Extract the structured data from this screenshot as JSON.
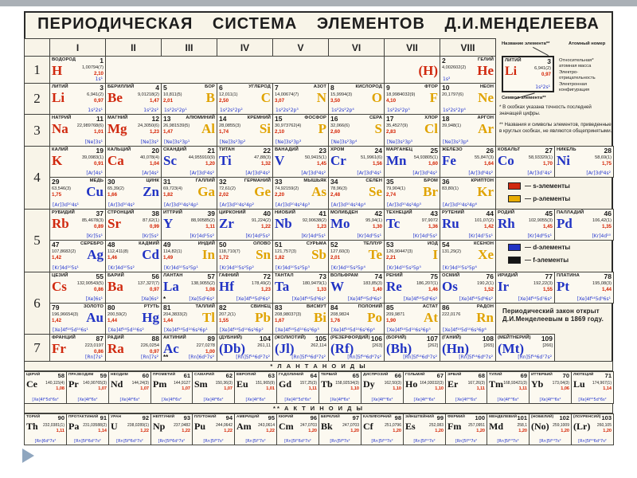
{
  "slide": {
    "title": "ПЕРИОДИЧЕСКАЯ СИСТЕМА ЭЛЕМЕНТОВ Д.И.МЕНДЕЛЕЕВА",
    "footnote_star": "* В скобках указана точность последней значащей цифры.",
    "footnote_dblstar": "** Названия и символы элементов, приведенные в круглых скобках, не являются общепринятыми.",
    "law_note": "Периодический закон открыт\nД.И.Менделеевым в 1869 году."
  },
  "groups": [
    "I",
    "II",
    "III",
    "IV",
    "V",
    "VI",
    "VII",
    "VIII"
  ],
  "periods": [
    "1",
    "2",
    "3",
    "4",
    "5",
    "6",
    "7"
  ],
  "series_headers": {
    "lanthanides": "* Л А Н Т А Н О И Д Ы",
    "actinides": "** А К Т И Н О И Д Ы"
  },
  "legend": {
    "name_label": "Название элемента**",
    "number_label": "Атомный номер",
    "mass_label": "Относительная*\nатомная масса",
    "en_label": "Электро-\nотрицательность",
    "cfg_label": "Электронная\nконфигурация",
    "symbol_label": "Символ элемента**"
  },
  "sample_card": {
    "num": "3",
    "name": "ЛИТИЙ",
    "sym": "Li",
    "mass": "6,941(2)",
    "en": "0,97",
    "cfg": "1s²2s¹"
  },
  "block_legend": [
    {
      "color": "#d0290f",
      "label": "— s-элементы"
    },
    {
      "color": "#e8ac00",
      "label": "— p-элементы"
    },
    {
      "color": "#2133c4",
      "label": "— d-элементы"
    },
    {
      "color": "#141414",
      "label": "— f-элементы"
    }
  ],
  "element_fields": [
    "row",
    "col",
    "side",
    "block",
    "number",
    "name",
    "symbol",
    "atomic_mass",
    "electronegativity",
    "electron_configuration",
    "marker"
  ],
  "elements": [
    [
      "p1",
      1,
      "L",
      "s",
      "1",
      "ВОДОРОД",
      "H",
      "1,00794(7)",
      "2,10",
      "1s¹",
      ""
    ],
    [
      "p1",
      7,
      "R",
      "s",
      "",
      "",
      "(H)",
      "",
      "",
      "",
      ""
    ],
    [
      "p1",
      8,
      "R",
      "s",
      "2",
      "ГЕЛИЙ",
      "He",
      "4,002602(2)",
      "",
      "1s²",
      ""
    ],
    [
      "p2",
      1,
      "L",
      "s",
      "3",
      "ЛИТИЙ",
      "Li",
      "6,941(2)",
      "0,97",
      "1s²2s¹",
      ""
    ],
    [
      "p2",
      2,
      "L",
      "s",
      "4",
      "БЕРИЛЛИЙ",
      "Be",
      "9,01218(2)",
      "1,47",
      "1s²2s²",
      ""
    ],
    [
      "p2",
      3,
      "R",
      "p",
      "5",
      "БОР",
      "B",
      "10,811(5)",
      "2,01",
      "1s²2s²2p¹",
      ""
    ],
    [
      "p2",
      4,
      "R",
      "p",
      "6",
      "УГЛЕРОД",
      "C",
      "12,011(1)",
      "2,50",
      "1s²2s²2p²",
      ""
    ],
    [
      "p2",
      5,
      "R",
      "p",
      "7",
      "АЗОТ",
      "N",
      "14,00674(7)",
      "3,07",
      "1s²2s²2p³",
      ""
    ],
    [
      "p2",
      6,
      "R",
      "p",
      "8",
      "КИСЛОРОД",
      "O",
      "15,9994(3)",
      "3,50",
      "1s²2s²2p⁴",
      ""
    ],
    [
      "p2",
      7,
      "R",
      "p",
      "9",
      "ФТОР",
      "F",
      "18,9984032(9)",
      "4,10",
      "1s²2s²2p⁵",
      ""
    ],
    [
      "p2",
      8,
      "R",
      "p",
      "10",
      "НЕОН",
      "Ne",
      "20,1797(6)",
      "",
      "1s²2s²2p⁶",
      ""
    ],
    [
      "p3",
      1,
      "L",
      "s",
      "11",
      "НАТРИЙ",
      "Na",
      "22,989768(6)",
      "1,01",
      "[Ne]3s¹",
      ""
    ],
    [
      "p3",
      2,
      "L",
      "s",
      "12",
      "МАГНИЙ",
      "Mg",
      "24,3050(6)",
      "1,23",
      "[Ne]3s²",
      ""
    ],
    [
      "p3",
      3,
      "R",
      "p",
      "13",
      "АЛЮМИНИЙ",
      "Al",
      "26,981539(5)",
      "1,47",
      "[Ne]3s²3p¹",
      ""
    ],
    [
      "p3",
      4,
      "R",
      "p",
      "14",
      "КРЕМНИЙ",
      "Si",
      "28,0855(3)",
      "1,74",
      "[Ne]3s²3p²",
      ""
    ],
    [
      "p3",
      5,
      "R",
      "p",
      "15",
      "ФОСФОР",
      "P",
      "30,973762(4)",
      "2,10",
      "[Ne]3s²3p³",
      ""
    ],
    [
      "p3",
      6,
      "R",
      "p",
      "16",
      "СЕРА",
      "S",
      "32,066(6)",
      "2,60",
      "[Ne]3s²3p⁴",
      ""
    ],
    [
      "p3",
      7,
      "R",
      "p",
      "17",
      "ХЛОР",
      "Cl",
      "35,4527(9)",
      "2,83",
      "[Ne]3s²3p⁵",
      ""
    ],
    [
      "p3",
      8,
      "R",
      "p",
      "18",
      "АРГОН",
      "Ar",
      "39,948(1)",
      "",
      "[Ne]3s²3p⁶",
      ""
    ],
    [
      "p4a",
      1,
      "L",
      "s",
      "19",
      "КАЛИЙ",
      "K",
      "39,0983(1)",
      "0,91",
      "[Ar]4s¹",
      ""
    ],
    [
      "p4a",
      2,
      "L",
      "s",
      "20",
      "КАЛЬЦИЙ",
      "Ca",
      "40,078(4)",
      "1,04",
      "[Ar]4s²",
      ""
    ],
    [
      "p4a",
      3,
      "L",
      "d",
      "21",
      "СКАНДИЙ",
      "Sc",
      "44,955910(9)",
      "1,20",
      "[Ar]3d¹4s²",
      ""
    ],
    [
      "p4a",
      4,
      "L",
      "d",
      "22",
      "ТИТАН",
      "Ti",
      "47,88(3)",
      "1,32",
      "[Ar]3d²4s²",
      ""
    ],
    [
      "p4a",
      5,
      "L",
      "d",
      "23",
      "ВАНАДИЙ",
      "V",
      "50,9415(1)",
      "1,45",
      "[Ar]3d³4s²",
      ""
    ],
    [
      "p4a",
      6,
      "L",
      "d",
      "24",
      "ХРОМ",
      "Cr",
      "51,9961(6)",
      "1,56",
      "[Ar]3d⁵4s¹",
      ""
    ],
    [
      "p4a",
      7,
      "L",
      "d",
      "25",
      "МАРГАНЕЦ",
      "Mn",
      "54,93805(1)",
      "1,60",
      "[Ar]3d⁵4s²",
      ""
    ],
    [
      "p4a",
      8,
      "L",
      "d",
      "26",
      "ЖЕЛЕЗО",
      "Fe",
      "55,847(3)",
      "1,64",
      "[Ar]3d⁶4s²",
      ""
    ],
    [
      "p4a",
      9,
      "L",
      "d",
      "27",
      "КОБАЛЬТ",
      "Co",
      "58,93320(1)",
      "1,70",
      "[Ar]3d⁷4s²",
      ""
    ],
    [
      "p4a",
      10,
      "L",
      "d",
      "28",
      "НИКЕЛЬ",
      "Ni",
      "58,69(1)",
      "1,75",
      "[Ar]3d⁸4s²",
      ""
    ],
    [
      "p4b",
      1,
      "R",
      "d",
      "29",
      "МЕДЬ",
      "Cu",
      "63,546(3)",
      "1,75",
      "[Ar]3d¹⁰4s¹",
      ""
    ],
    [
      "p4b",
      2,
      "R",
      "d",
      "30",
      "ЦИНК",
      "Zn",
      "65,39(2)",
      "1,66",
      "[Ar]3d¹⁰4s²",
      ""
    ],
    [
      "p4b",
      3,
      "R",
      "p",
      "31",
      "ГАЛЛИЙ",
      "Ga",
      "69,723(4)",
      "1,82",
      "[Ar]3d¹⁰4s²4p¹",
      ""
    ],
    [
      "p4b",
      4,
      "R",
      "p",
      "32",
      "ГЕРМАНИЙ",
      "Ge",
      "72,61(2)",
      "2,02",
      "[Ar]3d¹⁰4s²4p²",
      ""
    ],
    [
      "p4b",
      5,
      "R",
      "p",
      "33",
      "МЫШЬЯК",
      "As",
      "74,92159(2)",
      "2,20",
      "[Ar]3d¹⁰4s²4p³",
      ""
    ],
    [
      "p4b",
      6,
      "R",
      "p",
      "34",
      "СЕЛЕН",
      "Se",
      "78,96(3)",
      "2,48",
      "[Ar]3d¹⁰4s²4p⁴",
      ""
    ],
    [
      "p4b",
      7,
      "R",
      "p",
      "35",
      "БРОМ",
      "Br",
      "79,904(1)",
      "2,74",
      "[Ar]3d¹⁰4s²4p⁵",
      ""
    ],
    [
      "p4b",
      8,
      "R",
      "p",
      "36",
      "КРИПТОН",
      "Kr",
      "83,80(1)",
      "",
      "[Ar]3d¹⁰4s²4p⁶",
      ""
    ],
    [
      "p5a",
      1,
      "L",
      "s",
      "37",
      "РУБИДИЙ",
      "Rb",
      "85,4678(3)",
      "0,89",
      "[Kr]5s¹",
      ""
    ],
    [
      "p5a",
      2,
      "L",
      "s",
      "38",
      "СТРОНЦИЙ",
      "Sr",
      "87,62(1)",
      "0,99",
      "[Kr]5s²",
      ""
    ],
    [
      "p5a",
      3,
      "L",
      "d",
      "39",
      "ИТТРИЙ",
      "Y",
      "88,90585(2)",
      "1,11",
      "[Kr]4d¹5s²",
      ""
    ],
    [
      "p5a",
      4,
      "L",
      "d",
      "40",
      "ЦИРКОНИЙ",
      "Zr",
      "91,224(2)",
      "1,22",
      "[Kr]4d²5s²",
      ""
    ],
    [
      "p5a",
      5,
      "L",
      "d",
      "41",
      "НИОБИЙ",
      "Nb",
      "92,90638(2)",
      "1,23",
      "[Kr]4d⁴5s¹",
      ""
    ],
    [
      "p5a",
      6,
      "L",
      "d",
      "42",
      "МОЛИБДЕН",
      "Mo",
      "95,94(1)",
      "1,30",
      "[Kr]4d⁵5s¹",
      ""
    ],
    [
      "p5a",
      7,
      "L",
      "d",
      "43",
      "ТЕХНЕЦИЙ",
      "Tc",
      "97,9072",
      "1,36",
      "[Kr]4d⁵5s²",
      ""
    ],
    [
      "p5a",
      8,
      "L",
      "d",
      "44",
      "РУТЕНИЙ",
      "Ru",
      "101,07(2)",
      "1,42",
      "[Kr]4d⁷5s¹",
      ""
    ],
    [
      "p5a",
      9,
      "L",
      "d",
      "45",
      "РОДИЙ",
      "Rh",
      "102,9055(3)",
      "1,45",
      "[Kr]4d⁸5s¹",
      ""
    ],
    [
      "p5a",
      10,
      "L",
      "d",
      "46",
      "ПАЛЛАДИЙ",
      "Pd",
      "106,42(1)",
      "1,35",
      "[Kr]4d¹⁰",
      ""
    ],
    [
      "p5b",
      1,
      "R",
      "d",
      "47",
      "СЕРЕБРО",
      "Ag",
      "107,8682(2)",
      "1,42",
      "[Kr]4d¹⁰5s¹",
      ""
    ],
    [
      "p5b",
      2,
      "R",
      "d",
      "48",
      "КАДМИЙ",
      "Cd",
      "112,411(8)",
      "1,46",
      "[Kr]4d¹⁰5s²",
      ""
    ],
    [
      "p5b",
      3,
      "R",
      "p",
      "49",
      "ИНДИЙ",
      "In",
      "114,82(1)",
      "1,49",
      "[Kr]4d¹⁰5s²5p¹",
      ""
    ],
    [
      "p5b",
      4,
      "R",
      "p",
      "50",
      "ОЛОВО",
      "Sn",
      "118,710(7)",
      "1,72",
      "[Kr]4d¹⁰5s²5p²",
      ""
    ],
    [
      "p5b",
      5,
      "R",
      "p",
      "51",
      "СУРЬМА",
      "Sb",
      "121,757(3)",
      "1,82",
      "[Kr]4d¹⁰5s²5p³",
      ""
    ],
    [
      "p5b",
      6,
      "R",
      "p",
      "52",
      "ТЕЛЛУР",
      "Te",
      "127,60(3)",
      "2,01",
      "[Kr]4d¹⁰5s²5p⁴",
      ""
    ],
    [
      "p5b",
      7,
      "R",
      "p",
      "53",
      "ИОД",
      "I",
      "126,90447(3)",
      "2,21",
      "[Kr]4d¹⁰5s²5p⁵",
      ""
    ],
    [
      "p5b",
      8,
      "R",
      "p",
      "54",
      "КСЕНОН",
      "Xe",
      "131,29(2)",
      "",
      "[Kr]4d¹⁰5s²5p⁶",
      ""
    ],
    [
      "p6a",
      1,
      "L",
      "s",
      "55",
      "ЦЕЗИЙ",
      "Cs",
      "132,90543(5)",
      "0,86",
      "[Xe]6s¹",
      ""
    ],
    [
      "p6a",
      2,
      "L",
      "s",
      "56",
      "БАРИЙ",
      "Ba",
      "137,327(7)",
      "0,97",
      "[Xe]6s²",
      ""
    ],
    [
      "p6a",
      3,
      "L",
      "d",
      "57",
      "ЛАНТАН",
      "La",
      "138,9055(2)",
      "1,08",
      "[Xe]5d¹6s²",
      "*"
    ],
    [
      "p6a",
      4,
      "L",
      "d",
      "72",
      "ГАФНИЙ",
      "Hf",
      "178,49(2)",
      "1,23",
      "[Xe]4f¹⁴5d²6s²",
      ""
    ],
    [
      "p6a",
      5,
      "L",
      "d",
      "73",
      "ТАНТАЛ",
      "Ta",
      "180,9479(1)",
      "1,33",
      "[Xe]4f¹⁴5d³6s²",
      ""
    ],
    [
      "p6a",
      6,
      "L",
      "d",
      "74",
      "ВОЛЬФРАМ",
      "W",
      "183,85(3)",
      "1,40",
      "[Xe]4f¹⁴5d⁴6s²",
      ""
    ],
    [
      "p6a",
      7,
      "L",
      "d",
      "75",
      "РЕНИЙ",
      "Re",
      "186,207(1)",
      "1,46",
      "[Xe]4f¹⁴5d⁵6s²",
      ""
    ],
    [
      "p6a",
      8,
      "L",
      "d",
      "76",
      "ОСМИЙ",
      "Os",
      "190,2(1)",
      "1,52",
      "[Xe]4f¹⁴5d⁶6s²",
      ""
    ],
    [
      "p6a",
      9,
      "L",
      "d",
      "77",
      "ИРИДИЙ",
      "Ir",
      "192,22(3)",
      "1,55",
      "[Xe]4f¹⁴5d⁷6s²",
      ""
    ],
    [
      "p6a",
      10,
      "L",
      "d",
      "78",
      "ПЛАТИНА",
      "Pt",
      "195,08(3)",
      "1,44",
      "[Xe]4f¹⁴5d⁹6s¹",
      ""
    ],
    [
      "p6b",
      1,
      "R",
      "d",
      "79",
      "ЗОЛОТО",
      "Au",
      "196,96654(3)",
      "1,42",
      "[Xe]4f¹⁴5d¹⁰6s¹",
      ""
    ],
    [
      "p6b",
      2,
      "R",
      "d",
      "80",
      "РТУТЬ",
      "Hg",
      "200,59(2)",
      "1,44",
      "[Xe]4f¹⁴5d¹⁰6s²",
      ""
    ],
    [
      "p6b",
      3,
      "R",
      "p",
      "81",
      "ТАЛЛИЙ",
      "Tl",
      "204,3833(2)",
      "1,44",
      "[Xe]4f¹⁴5d¹⁰6s²6p¹",
      ""
    ],
    [
      "p6b",
      4,
      "R",
      "p",
      "82",
      "СВИНЕЦ",
      "Pb",
      "207,2(1)",
      "1,55",
      "[Xe]4f¹⁴5d¹⁰6s²6p²",
      ""
    ],
    [
      "p6b",
      5,
      "R",
      "p",
      "83",
      "ВИСМУТ",
      "Bi",
      "208,98037(3)",
      "1,67",
      "[Xe]4f¹⁴5d¹⁰6s²6p³",
      ""
    ],
    [
      "p6b",
      6,
      "R",
      "p",
      "84",
      "ПОЛОНИЙ",
      "Po",
      "208,9824",
      "1,76",
      "[Xe]4f¹⁴5d¹⁰6s²6p⁴",
      ""
    ],
    [
      "p6b",
      7,
      "R",
      "p",
      "85",
      "АСТАТ",
      "At",
      "209,9871",
      "1,90",
      "[Xe]4f¹⁴5d¹⁰6s²6p⁵",
      ""
    ],
    [
      "p6b",
      8,
      "R",
      "p",
      "86",
      "РАДОН",
      "Rn",
      "222,0176",
      "",
      "[Xe]4f¹⁴5d¹⁰6s²6p⁶",
      ""
    ],
    [
      "p7",
      1,
      "L",
      "s",
      "87",
      "ФРАНЦИЙ",
      "Fr",
      "223,0197",
      "0,86",
      "[Rn]7s¹",
      ""
    ],
    [
      "p7",
      2,
      "L",
      "s",
      "88",
      "РАДИЙ",
      "Ra",
      "226,0254",
      "0,97",
      "[Rn]7s²",
      ""
    ],
    [
      "p7",
      3,
      "L",
      "d",
      "89",
      "АКТИНИЙ",
      "Ac",
      "227,0278",
      "1,00",
      "[Rn]6d¹7s²",
      "**"
    ],
    [
      "p7",
      4,
      "L",
      "d",
      "104",
      "(ДУБНИЙ)",
      "(Db)",
      "261,11",
      "",
      "[Rn]5f¹⁴6d²7s²",
      ""
    ],
    [
      "p7",
      5,
      "L",
      "d",
      "105",
      "(ЖОЛИОТИЙ)",
      "(Jl)",
      "262,114",
      "",
      "[Rn]5f¹⁴6d³7s²",
      ""
    ],
    [
      "p7",
      6,
      "L",
      "d",
      "106",
      "(РЕЗЕРФОРДИЙ)",
      "(Rf)",
      "[263]",
      "",
      "[Rn]5f¹⁴6d⁴7s²",
      ""
    ],
    [
      "p7",
      7,
      "L",
      "d",
      "107",
      "(БОРИЙ)",
      "(Bh)",
      "[262]",
      "",
      "[Rn]5f¹⁴6d⁵7s²",
      ""
    ],
    [
      "p7",
      8,
      "L",
      "d",
      "108",
      "(ГАНИЙ)",
      "(Hn)",
      "[265]",
      "",
      "[Rn]5f¹⁴6d⁶7s²",
      ""
    ],
    [
      "p7",
      9,
      "L",
      "d",
      "109",
      "(МЕЙТНЕРИЙ)",
      "(Mt)",
      "[266]",
      "",
      "[Rn]5f¹⁴6d⁷7s²",
      ""
    ],
    [
      "la",
      1,
      "L",
      "f",
      "58",
      "ЦЕРИЙ",
      "Ce",
      "140,115(4)",
      "1,08",
      "[Xe]4f¹5d¹6s²",
      ""
    ],
    [
      "la",
      2,
      "L",
      "f",
      "59",
      "ПРАЗЕОДИМ",
      "Pr",
      "140,90765(3)",
      "1,07",
      "[Xe]4f³6s²",
      ""
    ],
    [
      "la",
      3,
      "L",
      "f",
      "60",
      "НЕОДИМ",
      "Nd",
      "144,24(3)",
      "1,07",
      "[Xe]4f⁴6s²",
      ""
    ],
    [
      "la",
      4,
      "L",
      "f",
      "61",
      "ПРОМЕТИЙ",
      "Pm",
      "144,9127",
      "1,07",
      "[Xe]4f⁵6s²",
      ""
    ],
    [
      "la",
      5,
      "L",
      "f",
      "62",
      "САМАРИЙ",
      "Sm",
      "150,36(3)",
      "1,07",
      "[Xe]4f⁶6s²",
      ""
    ],
    [
      "la",
      6,
      "L",
      "f",
      "63",
      "ЕВРОПИЙ",
      "Eu",
      "151,965(9)",
      "1,01",
      "[Xe]4f⁷6s²",
      ""
    ],
    [
      "la",
      7,
      "L",
      "f",
      "64",
      "ГАДОЛИНИЙ",
      "Gd",
      "157,25(3)",
      "1,11",
      "[Xe]4f⁷5d¹6s²",
      ""
    ],
    [
      "la",
      8,
      "L",
      "f",
      "65",
      "ТЕРБИЙ",
      "Tb",
      "158,92534(3)",
      "1,10",
      "[Xe]4f⁹6s²",
      ""
    ],
    [
      "la",
      9,
      "L",
      "f",
      "66",
      "ДИСПРОЗИЙ",
      "Dy",
      "162,50(3)",
      "1,10",
      "[Xe]4f¹⁰6s²",
      ""
    ],
    [
      "la",
      10,
      "L",
      "f",
      "67",
      "ГОЛЬМИЙ",
      "Ho",
      "164,93032(3)",
      "1,10",
      "[Xe]4f¹¹6s²",
      ""
    ],
    [
      "la",
      11,
      "L",
      "f",
      "68",
      "ЭРБИЙ",
      "Er",
      "167,26(3)",
      "1,11",
      "[Xe]4f¹²6s²",
      ""
    ],
    [
      "la",
      12,
      "L",
      "f",
      "69",
      "ТУЛИЙ",
      "Tm",
      "168,93421(3)",
      "1,11",
      "[Xe]4f¹³6s²",
      ""
    ],
    [
      "la",
      13,
      "L",
      "f",
      "70",
      "ИТТЕРБИЙ",
      "Yb",
      "173,04(3)",
      "1,06",
      "[Xe]4f¹⁴6s²",
      ""
    ],
    [
      "la",
      14,
      "L",
      "f",
      "71",
      "ЛЮТЕЦИЙ",
      "Lu",
      "174,967(1)",
      "1,14",
      "[Xe]4f¹⁴5d¹6s²",
      ""
    ],
    [
      "ac",
      1,
      "L",
      "f",
      "90",
      "ТОРИЙ",
      "Th",
      "232,0381(1)",
      "1,11",
      "[Rn]6d²7s²",
      ""
    ],
    [
      "ac",
      2,
      "L",
      "f",
      "91",
      "ПРОТАКТИНИЙ",
      "Pa",
      "231,03588(2)",
      "1,14",
      "[Rn]5f²6d¹7s²",
      ""
    ],
    [
      "ac",
      3,
      "L",
      "f",
      "92",
      "УРАН",
      "U",
      "238,0289(1)",
      "1,22",
      "[Rn]5f³6d¹7s²",
      ""
    ],
    [
      "ac",
      4,
      "L",
      "f",
      "93",
      "НЕПТУНИЙ",
      "Np",
      "237,0482",
      "1,22",
      "[Rn]5f⁴6d¹7s²",
      ""
    ],
    [
      "ac",
      5,
      "L",
      "f",
      "94",
      "ПЛУТОНИЙ",
      "Pu",
      "244,0642",
      "1,22",
      "[Rn]5f⁶7s²",
      ""
    ],
    [
      "ac",
      6,
      "L",
      "f",
      "95",
      "АМЕРИЦИЙ",
      "Am",
      "243,0614",
      "1,22",
      "[Rn]5f⁷7s²",
      ""
    ],
    [
      "ac",
      7,
      "L",
      "f",
      "96",
      "КЮРИЙ",
      "Cm",
      "247,0703",
      "1,20",
      "[Rn]5f⁷6d¹7s²",
      ""
    ],
    [
      "ac",
      8,
      "L",
      "f",
      "97",
      "БЕРКЛИЙ",
      "Bk",
      "247,0703",
      "1,20",
      "[Rn]5f⁹7s²",
      ""
    ],
    [
      "ac",
      9,
      "L",
      "f",
      "98",
      "КАЛИФОРНИЙ",
      "Cf",
      "251,0796",
      "1,20",
      "[Rn]5f¹⁰7s²",
      ""
    ],
    [
      "ac",
      10,
      "L",
      "f",
      "99",
      "ЭЙНШТЕЙНИЙ",
      "Es",
      "252,083",
      "1,20",
      "[Rn]5f¹¹7s²",
      ""
    ],
    [
      "ac",
      11,
      "L",
      "f",
      "100",
      "ФЕРМИЙ",
      "Fm",
      "257,0951",
      "1,20",
      "[Rn]5f¹²7s²",
      ""
    ],
    [
      "ac",
      12,
      "L",
      "f",
      "101",
      "МЕНДЕЛЕВИЙ",
      "Md",
      "258,1",
      "1,20",
      "[Rn]5f¹³7s²",
      ""
    ],
    [
      "ac",
      13,
      "L",
      "f",
      "102",
      "(НОБЕЛИЙ)",
      "(No)",
      "259,1009",
      "1,20",
      "[Rn]5f¹⁴7s²",
      ""
    ],
    [
      "ac",
      14,
      "L",
      "f",
      "103",
      "(ЛОУРЕНСИЙ)",
      "(Lr)",
      "260,105",
      "1,20",
      "[Rn]5f¹⁴6d¹7s²",
      ""
    ]
  ]
}
